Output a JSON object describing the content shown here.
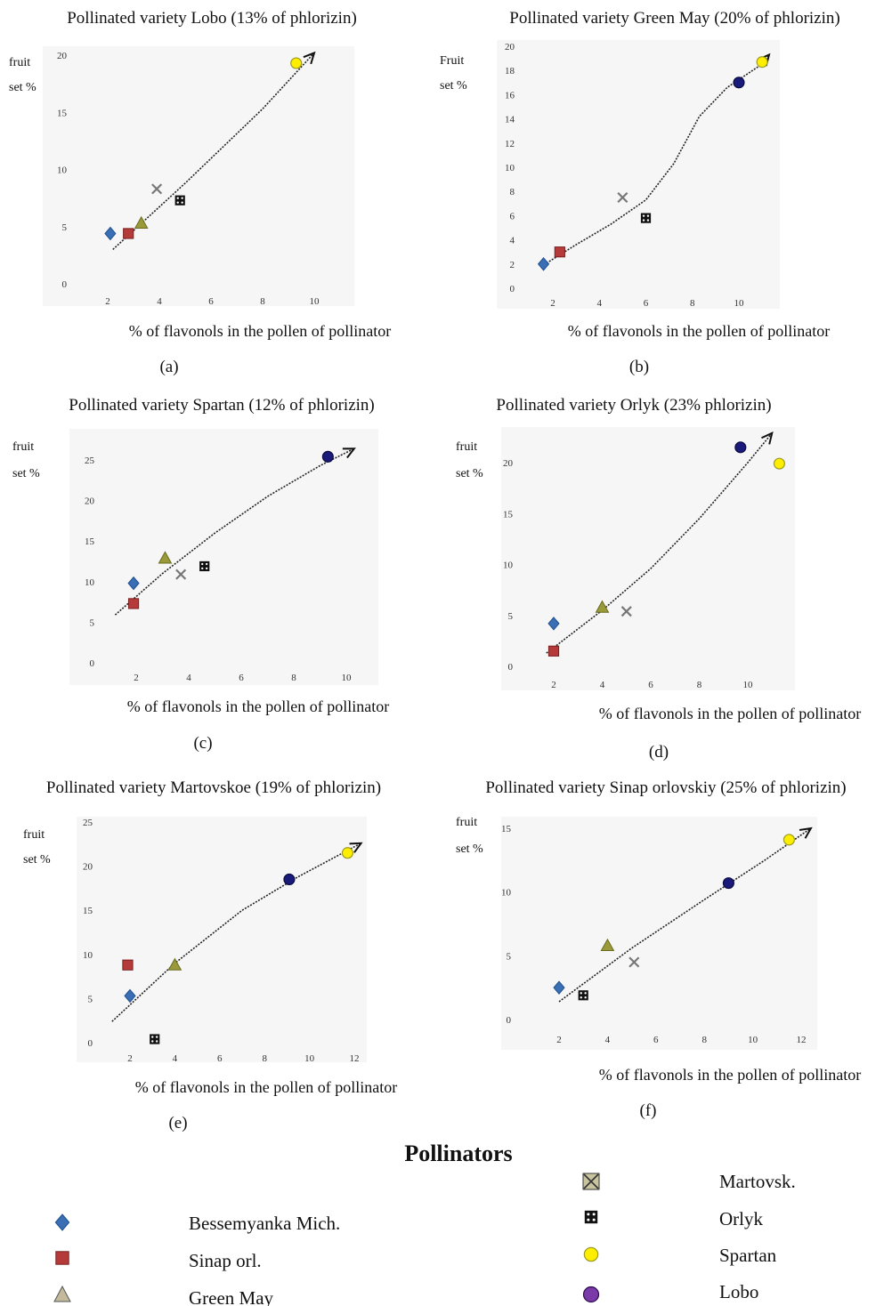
{
  "markers": {
    "Bessemyanka Mich.": {
      "shape": "diamond",
      "color": "#3a6fb5"
    },
    "Sinap orl.": {
      "shape": "square",
      "color": "#b53a3a"
    },
    "Green May": {
      "shape": "triangle",
      "color": "#9a9a3a"
    },
    "Martovsk.": {
      "shape": "xbox",
      "color": "#777777"
    },
    "Orlyk": {
      "shape": "dots",
      "color": "#111111"
    },
    "Spartan": {
      "shape": "circle",
      "color": "#ffee00"
    },
    "Lobo": {
      "shape": "circle",
      "color": "#1a1a7a"
    }
  },
  "legend": {
    "title": "Pollinators",
    "items": [
      "Bessemyanka Mich.",
      "Sinap orl.",
      "Green May",
      "Martovsk.",
      "Orlyk",
      "Spartan",
      "Lobo"
    ]
  },
  "chart_data": [
    {
      "type": "scatter",
      "panel_label": "(a)",
      "title": "Pollinated variety Lobo (13% of phlorizin)",
      "ylabel": "fruit set %",
      "xlabel": "% of flavonols in the pollen of pollinator",
      "xticks": [
        2,
        4,
        6,
        8,
        10
      ],
      "yticks": [
        0,
        5,
        10,
        15,
        20
      ],
      "points": [
        {
          "name": "Bessemyanka Mich.",
          "x": 2.1,
          "y": 4.4
        },
        {
          "name": "Sinap orl.",
          "x": 2.8,
          "y": 4.4
        },
        {
          "name": "Green May",
          "x": 3.3,
          "y": 5.3
        },
        {
          "name": "Martovsk.",
          "x": 3.9,
          "y": 8.3
        },
        {
          "name": "Orlyk",
          "x": 4.8,
          "y": 7.3
        },
        {
          "name": "Spartan",
          "x": 9.3,
          "y": 19.3
        }
      ],
      "trend": [
        [
          2.2,
          3.0
        ],
        [
          5.0,
          8.8
        ],
        [
          8.0,
          15.3
        ],
        [
          10.0,
          20.2
        ]
      ]
    },
    {
      "type": "scatter",
      "panel_label": "(b)",
      "title": "Pollinated variety Green May (20% of phlorizin)",
      "ylabel": "Fruit set %",
      "xlabel": "% of flavonols in the pollen of pollinator",
      "xticks": [
        2,
        4,
        6,
        8,
        10
      ],
      "yticks": [
        0,
        2,
        4,
        6,
        8,
        10,
        12,
        14,
        16,
        18,
        20
      ],
      "points": [
        {
          "name": "Bessemyanka Mich.",
          "x": 1.6,
          "y": 2.0
        },
        {
          "name": "Sinap orl.",
          "x": 2.3,
          "y": 3.0
        },
        {
          "name": "Martovsk.",
          "x": 5.0,
          "y": 7.5
        },
        {
          "name": "Orlyk",
          "x": 6.0,
          "y": 5.8
        },
        {
          "name": "Lobo",
          "x": 10.0,
          "y": 17.0
        },
        {
          "name": "Spartan",
          "x": 11.0,
          "y": 18.7
        }
      ],
      "trend": [
        [
          1.5,
          1.8
        ],
        [
          3.0,
          3.6
        ],
        [
          4.5,
          5.3
        ],
        [
          6.0,
          7.3
        ],
        [
          7.2,
          10.3
        ],
        [
          8.3,
          14.2
        ],
        [
          9.5,
          16.6
        ],
        [
          10.9,
          18.4
        ],
        [
          11.3,
          19.3
        ]
      ]
    },
    {
      "type": "scatter",
      "panel_label": "(c)",
      "title": "Pollinated variety Spartan (12% of phlorizin)",
      "ylabel": "fruit set %",
      "xlabel": "% of flavonols in the pollen of pollinator",
      "xticks": [
        2,
        4,
        6,
        8,
        10
      ],
      "yticks": [
        0,
        5,
        10,
        15,
        20,
        25
      ],
      "points": [
        {
          "name": "Bessemyanka Mich.",
          "x": 1.9,
          "y": 9.8
        },
        {
          "name": "Sinap orl.",
          "x": 1.9,
          "y": 7.3
        },
        {
          "name": "Green May",
          "x": 3.1,
          "y": 12.9
        },
        {
          "name": "Martovsk.",
          "x": 3.7,
          "y": 10.9
        },
        {
          "name": "Orlyk",
          "x": 4.6,
          "y": 11.9
        },
        {
          "name": "Lobo",
          "x": 9.3,
          "y": 25.4
        }
      ],
      "trend": [
        [
          1.2,
          5.9
        ],
        [
          3.0,
          11.0
        ],
        [
          5.0,
          16.0
        ],
        [
          7.0,
          20.5
        ],
        [
          9.0,
          24.3
        ],
        [
          10.3,
          26.4
        ]
      ]
    },
    {
      "type": "scatter",
      "panel_label": "(d)",
      "title": "Pollinated variety Orlyk (23% phlorizin)",
      "ylabel": "fruit set %",
      "xlabel": "% of flavonols in the pollen of pollinator",
      "xticks": [
        2,
        4,
        6,
        8,
        10
      ],
      "yticks": [
        0,
        5,
        10,
        15,
        20
      ],
      "points": [
        {
          "name": "Bessemyanka Mich.",
          "x": 2.0,
          "y": 4.2
        },
        {
          "name": "Sinap orl.",
          "x": 2.0,
          "y": 1.5
        },
        {
          "name": "Green May",
          "x": 4.0,
          "y": 5.8
        },
        {
          "name": "Martovsk.",
          "x": 5.0,
          "y": 5.4
        },
        {
          "name": "Lobo",
          "x": 9.7,
          "y": 21.5
        },
        {
          "name": "Spartan",
          "x": 11.3,
          "y": 19.9
        }
      ],
      "trend": [
        [
          1.7,
          1.3
        ],
        [
          4.0,
          5.5
        ],
        [
          6.0,
          9.6
        ],
        [
          8.0,
          14.5
        ],
        [
          10.0,
          20.0
        ],
        [
          11.0,
          22.9
        ]
      ]
    },
    {
      "type": "scatter",
      "panel_label": "(e)",
      "title": "Pollinated variety Martovskoe (19% of phlorizin)",
      "ylabel": "fruit set %",
      "xlabel": "% of flavonols in the pollen of pollinator",
      "xticks": [
        2,
        4,
        6,
        8,
        10,
        12
      ],
      "yticks": [
        0,
        5,
        10,
        15,
        20,
        25
      ],
      "points": [
        {
          "name": "Bessemyanka Mich.",
          "x": 2.0,
          "y": 5.3
        },
        {
          "name": "Sinap orl.",
          "x": 1.9,
          "y": 8.8
        },
        {
          "name": "Green May",
          "x": 4.0,
          "y": 8.8
        },
        {
          "name": "Orlyk",
          "x": 3.1,
          "y": 0.4
        },
        {
          "name": "Lobo",
          "x": 9.1,
          "y": 18.5
        },
        {
          "name": "Spartan",
          "x": 11.7,
          "y": 21.5
        }
      ],
      "trend": [
        [
          1.2,
          2.4
        ],
        [
          4.0,
          9.0
        ],
        [
          7.0,
          15.0
        ],
        [
          9.5,
          18.8
        ],
        [
          12.3,
          22.6
        ]
      ]
    },
    {
      "type": "scatter",
      "panel_label": "(f)",
      "title": "Pollinated variety Sinap orlovskiy (25% of phlorizin)",
      "ylabel": "fruit set %",
      "xlabel": "% of flavonols in the pollen of pollinator",
      "xticks": [
        2,
        4,
        6,
        8,
        10,
        12
      ],
      "yticks": [
        0,
        5,
        10,
        15
      ],
      "points": [
        {
          "name": "Bessemyanka Mich.",
          "x": 2.0,
          "y": 2.5
        },
        {
          "name": "Orlyk",
          "x": 3.0,
          "y": 1.9
        },
        {
          "name": "Green May",
          "x": 4.0,
          "y": 5.8
        },
        {
          "name": "Martovsk.",
          "x": 5.1,
          "y": 4.5
        },
        {
          "name": "Lobo",
          "x": 9.0,
          "y": 10.7
        },
        {
          "name": "Spartan",
          "x": 11.5,
          "y": 14.1
        }
      ],
      "trend": [
        [
          2.0,
          1.4
        ],
        [
          5.0,
          5.6
        ],
        [
          8.0,
          9.4
        ],
        [
          10.5,
          12.5
        ],
        [
          12.4,
          15.0
        ]
      ]
    }
  ]
}
